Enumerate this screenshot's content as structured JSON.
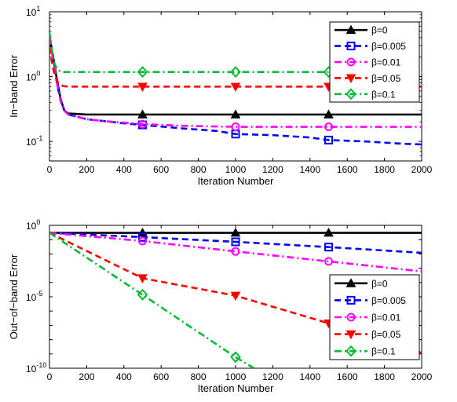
{
  "chart_data": [
    {
      "type": "line",
      "xlabel": "Iteration Number",
      "ylabel": "In−band Error",
      "xlim": [
        0,
        2000
      ],
      "ylim": [
        0.05,
        10
      ],
      "yscale": "log",
      "x_ticks": [
        0,
        200,
        400,
        600,
        800,
        1000,
        1200,
        1400,
        1600,
        1800,
        2000
      ],
      "y_ticks": [
        {
          "value": 0.1,
          "base": "10",
          "exp": "-1"
        },
        {
          "value": 1,
          "base": "10",
          "exp": "0"
        },
        {
          "value": 10,
          "base": "10",
          "exp": "1"
        }
      ],
      "legend_position": "top-right",
      "grid": false,
      "series": [
        {
          "name": "β=0",
          "color": "#000000",
          "dash": "solid",
          "marker": "triangle-up",
          "x": [
            0,
            20,
            40,
            60,
            80,
            100,
            150,
            200,
            300,
            500,
            1000,
            1500,
            2000
          ],
          "y": [
            4.2,
            2.0,
            0.9,
            0.45,
            0.3,
            0.27,
            0.265,
            0.26,
            0.26,
            0.26,
            0.26,
            0.26,
            0.26
          ],
          "markers_x": [
            500,
            1000,
            1500
          ]
        },
        {
          "name": "β=0.005",
          "color": "#0000ff",
          "dash": "dashed",
          "marker": "square",
          "x": [
            0,
            20,
            40,
            60,
            80,
            100,
            150,
            200,
            300,
            400,
            500,
            700,
            900,
            1000,
            1200,
            1400,
            1500,
            1700,
            1900,
            2000
          ],
          "y": [
            4.0,
            1.8,
            0.8,
            0.42,
            0.3,
            0.26,
            0.24,
            0.22,
            0.205,
            0.19,
            0.18,
            0.16,
            0.145,
            0.13,
            0.125,
            0.115,
            0.105,
            0.1,
            0.092,
            0.09
          ],
          "markers_x": [
            500,
            1000,
            1500
          ]
        },
        {
          "name": "β=0.01",
          "color": "#ff00ff",
          "dash": "dashdot",
          "marker": "circle",
          "x": [
            0,
            20,
            40,
            60,
            80,
            100,
            150,
            200,
            300,
            400,
            500,
            700,
            900,
            1000,
            1500,
            2000
          ],
          "y": [
            4.0,
            1.8,
            0.8,
            0.42,
            0.3,
            0.26,
            0.24,
            0.22,
            0.205,
            0.195,
            0.185,
            0.175,
            0.17,
            0.168,
            0.168,
            0.168
          ],
          "markers_x": [
            500,
            1000,
            1500
          ]
        },
        {
          "name": "β=0.05",
          "color": "#ff0000",
          "dash": "dashed",
          "marker": "triangle-down",
          "x": [
            0,
            20,
            40,
            60,
            80,
            100,
            150,
            200,
            500,
            1000,
            1500,
            2000
          ],
          "y": [
            2.8,
            1.3,
            0.85,
            0.74,
            0.71,
            0.7,
            0.7,
            0.7,
            0.7,
            0.7,
            0.7,
            0.7
          ],
          "markers_x": [
            500,
            1000,
            1500
          ]
        },
        {
          "name": "β=0.1",
          "color": "#00bb33",
          "dash": "dashdot",
          "marker": "diamond",
          "x": [
            0,
            20,
            40,
            60,
            80,
            100,
            150,
            200,
            500,
            1000,
            1500,
            2000
          ],
          "y": [
            4.8,
            1.8,
            1.3,
            1.2,
            1.18,
            1.18,
            1.18,
            1.18,
            1.18,
            1.18,
            1.18,
            1.18
          ],
          "markers_x": [
            500,
            1000,
            1500
          ]
        }
      ]
    },
    {
      "type": "line",
      "xlabel": "Iteration Number",
      "ylabel": "Out−of−band Error",
      "xlim": [
        0,
        2000
      ],
      "ylim": [
        1e-10,
        1
      ],
      "yscale": "log",
      "x_ticks": [
        0,
        200,
        400,
        600,
        800,
        1000,
        1200,
        1400,
        1600,
        1800,
        2000
      ],
      "y_ticks": [
        {
          "value": 1e-10,
          "base": "10",
          "exp": "-10"
        },
        {
          "value": 1e-05,
          "base": "10",
          "exp": "-5"
        },
        {
          "value": 1,
          "base": "10",
          "exp": "0"
        }
      ],
      "legend_position": "bottom-right",
      "grid": false,
      "series": [
        {
          "name": "β=0",
          "color": "#000000",
          "dash": "solid",
          "marker": "triangle-up",
          "x": [
            0,
            500,
            1000,
            1500,
            2000
          ],
          "y": [
            0.3,
            0.3,
            0.3,
            0.3,
            0.3
          ],
          "markers_x": [
            500,
            1000,
            1500
          ]
        },
        {
          "name": "β=0.005",
          "color": "#0000ff",
          "dash": "dashed",
          "marker": "square",
          "x": [
            0,
            500,
            1000,
            1500,
            2000
          ],
          "y": [
            0.3,
            0.15,
            0.07,
            0.03,
            0.012
          ],
          "markers_x": [
            500,
            1000,
            1500
          ]
        },
        {
          "name": "β=0.01",
          "color": "#ff00ff",
          "dash": "dashdot",
          "marker": "circle",
          "x": [
            0,
            500,
            1000,
            1500,
            2000
          ],
          "y": [
            0.3,
            0.08,
            0.015,
            0.003,
            0.0006
          ],
          "markers_x": [
            500,
            1000,
            1500
          ]
        },
        {
          "name": "β=0.05",
          "color": "#ff0000",
          "dash": "dashed",
          "marker": "triangle-down",
          "x": [
            0,
            500,
            1000,
            1500,
            2000
          ],
          "y": [
            0.3,
            0.0002,
            1.2e-05,
            1.4e-07,
            1.2e-09
          ],
          "markers_x": [
            500,
            1000,
            1500
          ]
        },
        {
          "name": "β=0.1",
          "color": "#00bb33",
          "dash": "dashdot",
          "marker": "diamond",
          "x": [
            0,
            500,
            1000,
            1100
          ],
          "y": [
            0.3,
            1.4e-05,
            6e-10,
            1e-10
          ],
          "markers_x": [
            500,
            1000
          ]
        }
      ]
    }
  ]
}
